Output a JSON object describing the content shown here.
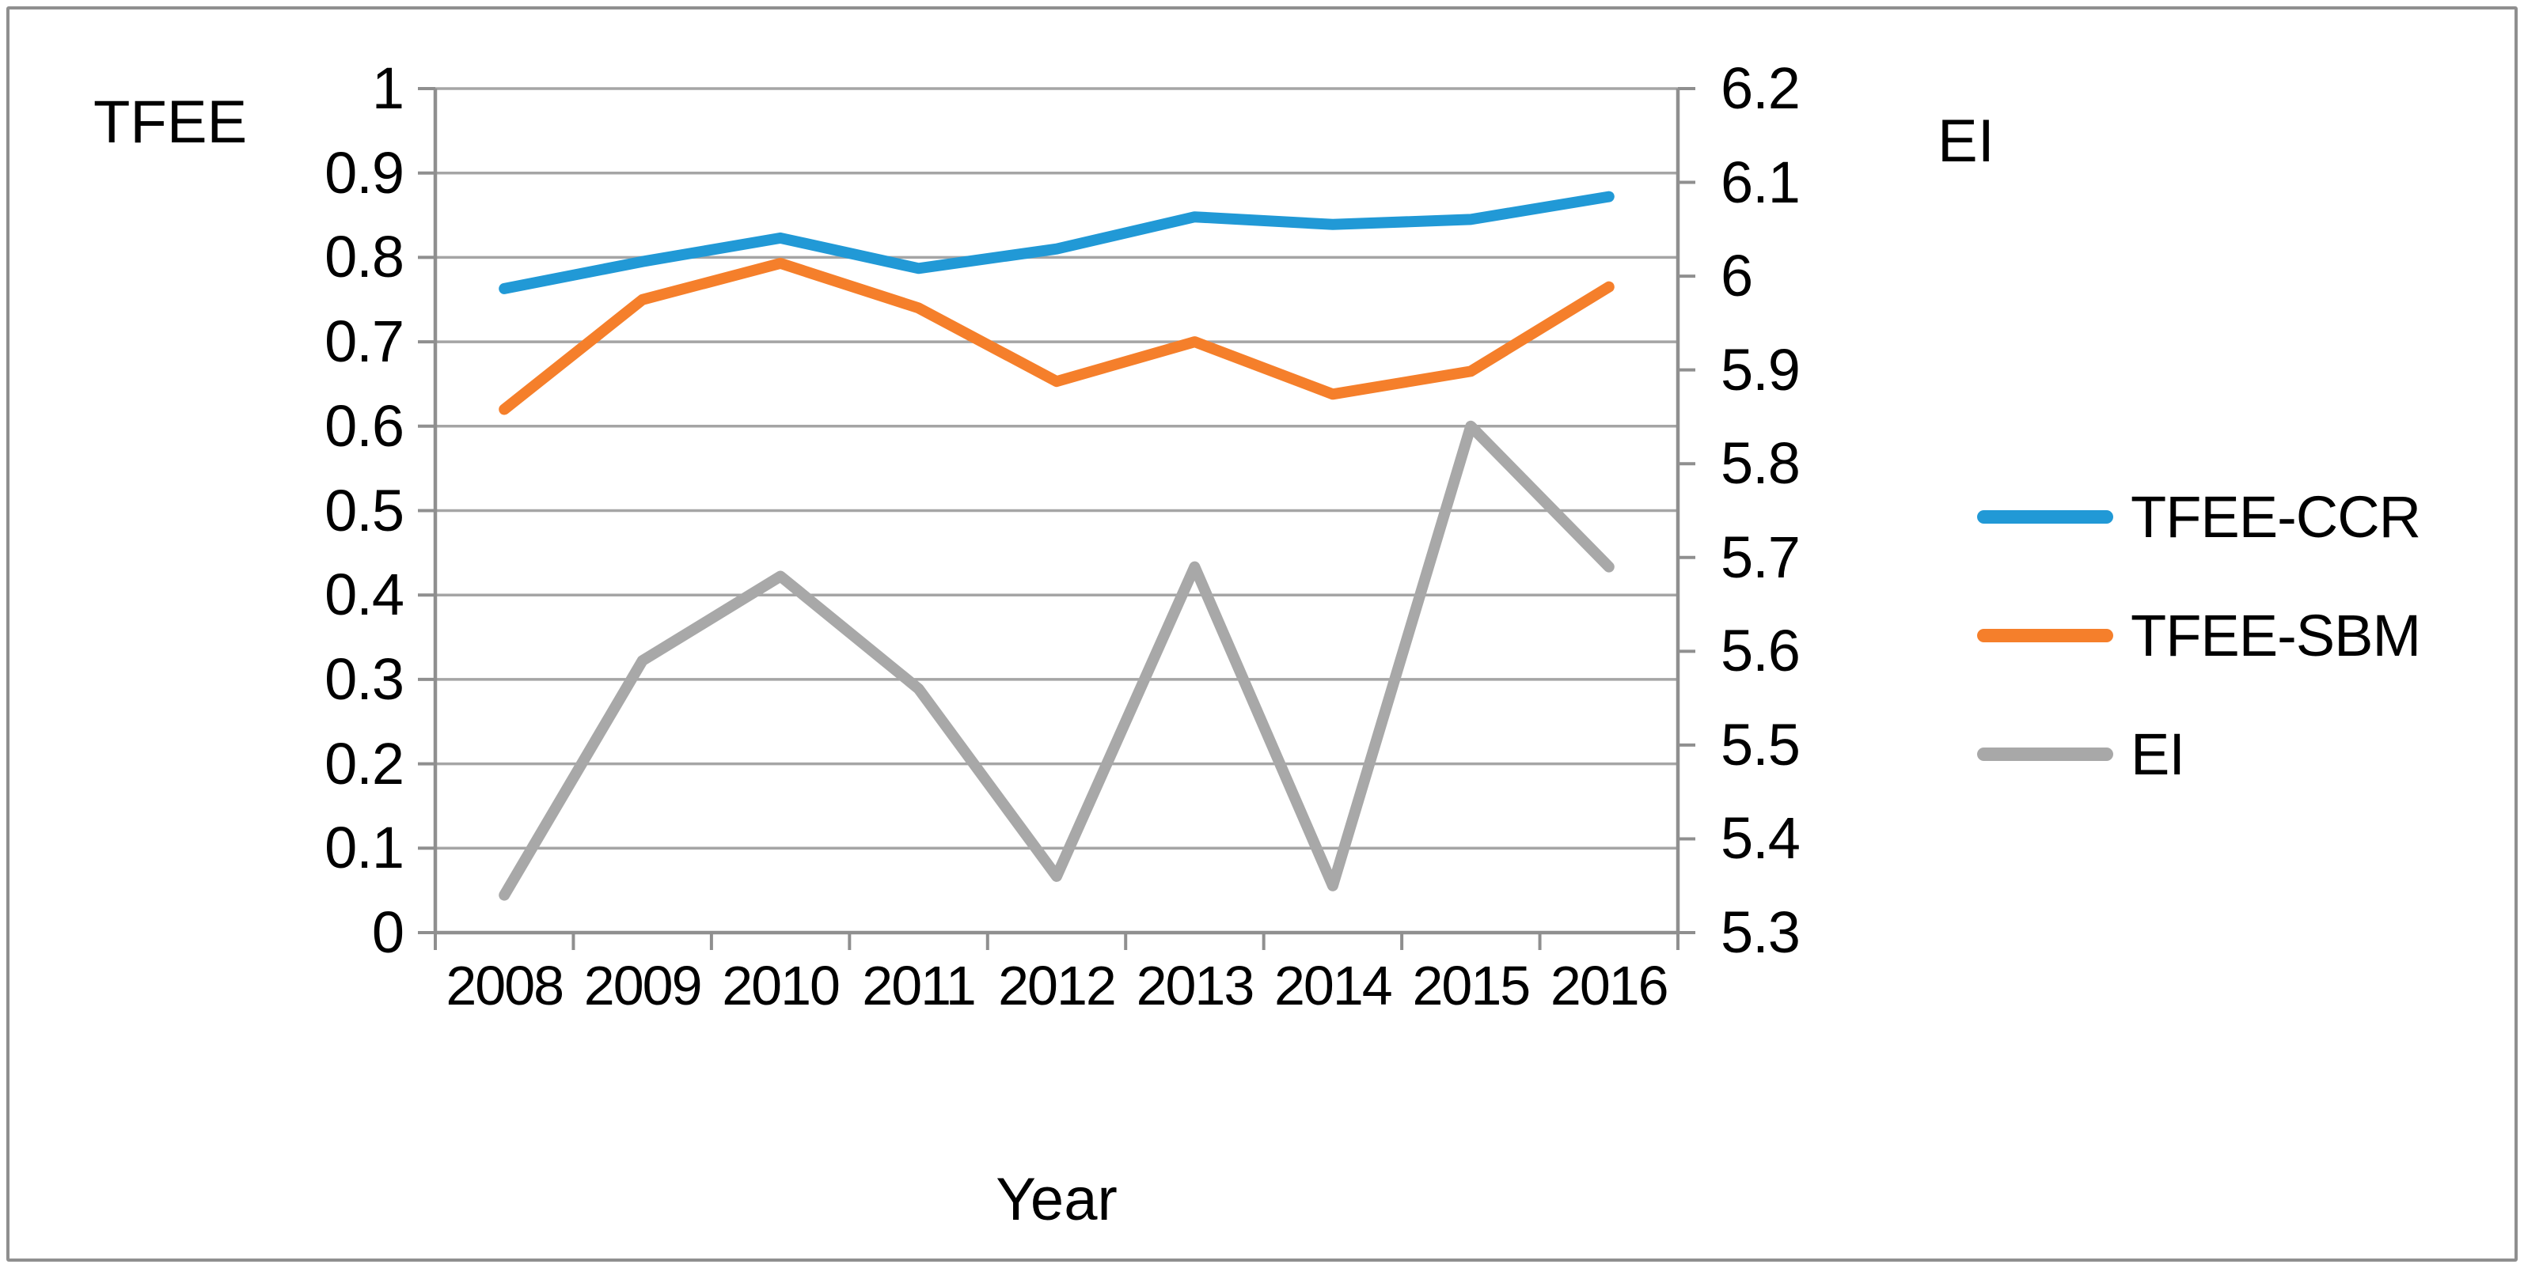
{
  "chart_data": {
    "type": "line",
    "x": {
      "title": "Year",
      "categories": [
        "2008",
        "2009",
        "2010",
        "2011",
        "2012",
        "2013",
        "2014",
        "2015",
        "2016"
      ]
    },
    "left_axis": {
      "title": "TFEE",
      "min": 0,
      "max": 1,
      "tick_step": 0.1,
      "ticks": [
        "1",
        "0.9",
        "0.8",
        "0.7",
        "0.6",
        "0.5",
        "0.4",
        "0.3",
        "0.2",
        "0.1",
        "0"
      ]
    },
    "right_axis": {
      "title": "EI",
      "min": 5.3,
      "max": 6.2,
      "tick_step": 0.1,
      "ticks": [
        "6.2",
        "6.1",
        "6",
        "5.9",
        "5.8",
        "5.7",
        "5.6",
        "5.5",
        "5.4",
        "5.3"
      ]
    },
    "grid": true,
    "legend_position": "right",
    "series": [
      {
        "name": "TFEE-CCR",
        "axis": "left",
        "color": "#2199d6",
        "values": [
          0.763,
          0.795,
          0.823,
          0.787,
          0.81,
          0.848,
          0.839,
          0.845,
          0.872
        ]
      },
      {
        "name": "TFEE-SBM",
        "axis": "left",
        "color": "#f57f2b",
        "values": [
          0.62,
          0.75,
          0.793,
          0.74,
          0.653,
          0.7,
          0.638,
          0.665,
          0.765
        ]
      },
      {
        "name": "EI",
        "axis": "right",
        "color": "#a8a8a8",
        "values": [
          5.34,
          5.59,
          5.68,
          5.56,
          5.36,
          5.69,
          5.35,
          5.84,
          5.69
        ]
      }
    ],
    "style_colors": {
      "gridline": "#a5a5a5",
      "axis_line": "#8f8f8f",
      "text": "#000000",
      "border": "#8f8f8f",
      "background": "#ffffff"
    }
  }
}
